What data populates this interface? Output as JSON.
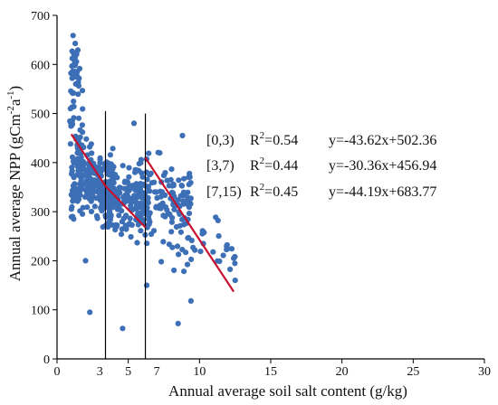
{
  "chart_data": {
    "type": "scatter",
    "xlabel": "Annual average soil salt content (g/kg)",
    "ylabel_parts": [
      "Annual average NPP (gCm",
      "-2",
      "a",
      "-1",
      ")"
    ],
    "xlim": [
      0,
      30
    ],
    "ylim": [
      0,
      700
    ],
    "x_ticks": [
      0,
      5,
      10,
      15,
      20,
      25,
      30
    ],
    "y_ticks": [
      0,
      100,
      200,
      300,
      400,
      500,
      600,
      700
    ],
    "extra_x_ticks": [
      3,
      7
    ],
    "point_color": "#3d6fb6",
    "fit_color": "#c8102e",
    "divider_color": "#000000",
    "dividers": [
      {
        "x": 3.4,
        "y_top": 505
      },
      {
        "x": 6.2,
        "y_top": 500
      }
    ],
    "fit_lines": [
      {
        "range_label": "[0,3)",
        "r2": "0.54",
        "equation": "y=-43.62x+502.36",
        "x_start": 1.0,
        "x_end": 6.2
      },
      {
        "range_label": "[3,7)",
        "r2": "0.44",
        "equation": "y=-30.36x+456.94",
        "x_start": 1.0,
        "x_end": 6.2
      },
      {
        "range_label": "[7,15)",
        "r2": "0.45",
        "equation": "y=-44.19x+683.77",
        "x_start": 6.2,
        "x_end": 12.4
      }
    ],
    "drawn_fit_segments": [
      {
        "x1": 1.0,
        "y1": 458,
        "x2": 3.4,
        "y2": 352
      },
      {
        "x1": 3.4,
        "y1": 352,
        "x2": 6.2,
        "y2": 268
      },
      {
        "x1": 6.2,
        "y1": 410,
        "x2": 12.4,
        "y2": 137
      }
    ],
    "cluster_spec": [
      {
        "n": 40,
        "x": [
          0.9,
          1.6
        ],
        "y_center": 590,
        "y_spread": 50
      },
      {
        "n": 40,
        "x": [
          0.9,
          1.8
        ],
        "y_center": 450,
        "y_spread": 70
      },
      {
        "n": 220,
        "x": [
          1.0,
          4.0
        ],
        "y_center": 360,
        "y_spread": 55
      },
      {
        "n": 200,
        "x": [
          3.0,
          6.5
        ],
        "y_center": 320,
        "y_spread": 55
      },
      {
        "n": 110,
        "x": [
          5.5,
          9.5
        ],
        "y_center": 330,
        "y_spread": 60
      },
      {
        "n": 45,
        "x": [
          7.0,
          12.5
        ],
        "y_center": 240,
        "y_spread": 55
      }
    ],
    "outliers": [
      {
        "x": 2.3,
        "y": 95
      },
      {
        "x": 4.6,
        "y": 62
      },
      {
        "x": 8.5,
        "y": 72
      },
      {
        "x": 12.4,
        "y": 205
      },
      {
        "x": 12.5,
        "y": 160
      },
      {
        "x": 11.3,
        "y": 282
      },
      {
        "x": 10.2,
        "y": 255
      },
      {
        "x": 9.4,
        "y": 118
      },
      {
        "x": 8.8,
        "y": 455
      },
      {
        "x": 5.4,
        "y": 480
      },
      {
        "x": 6.3,
        "y": 150
      },
      {
        "x": 2.0,
        "y": 200
      }
    ]
  }
}
